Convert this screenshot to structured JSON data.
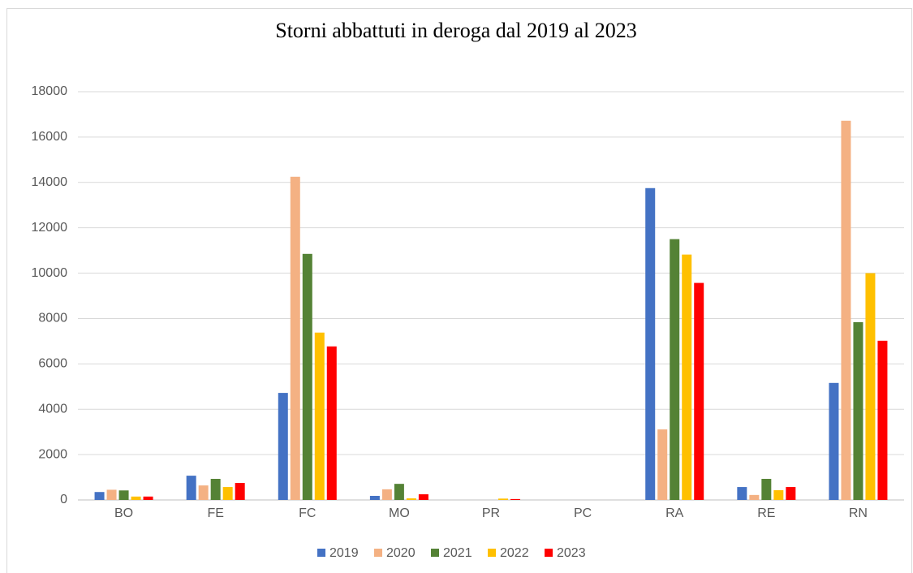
{
  "chart_data": {
    "type": "bar",
    "title": "Storni abbattuti in deroga dal 2019 al 2023",
    "categories": [
      "BO",
      "FE",
      "FC",
      "MO",
      "PR",
      "PC",
      "RA",
      "RE",
      "RN"
    ],
    "series": [
      {
        "name": "2019",
        "color": "#4472c4",
        "values": [
          350,
          1070,
          4720,
          180,
          0,
          0,
          13750,
          570,
          5160
        ]
      },
      {
        "name": "2020",
        "color": "#f4b183",
        "values": [
          450,
          640,
          14250,
          470,
          0,
          0,
          3110,
          220,
          16720
        ]
      },
      {
        "name": "2021",
        "color": "#548235",
        "values": [
          420,
          930,
          10850,
          710,
          0,
          0,
          11500,
          930,
          7840
        ]
      },
      {
        "name": "2022",
        "color": "#ffc000",
        "values": [
          150,
          570,
          7380,
          70,
          60,
          0,
          10820,
          430,
          10000
        ]
      },
      {
        "name": "2023",
        "color": "#ff0000",
        "values": [
          150,
          750,
          6770,
          250,
          40,
          0,
          9570,
          570,
          7020
        ]
      }
    ],
    "ylim": [
      0,
      18000
    ],
    "yticks": [
      0,
      2000,
      4000,
      6000,
      8000,
      10000,
      12000,
      14000,
      16000,
      18000
    ],
    "grid": true,
    "legend": "bottom"
  }
}
